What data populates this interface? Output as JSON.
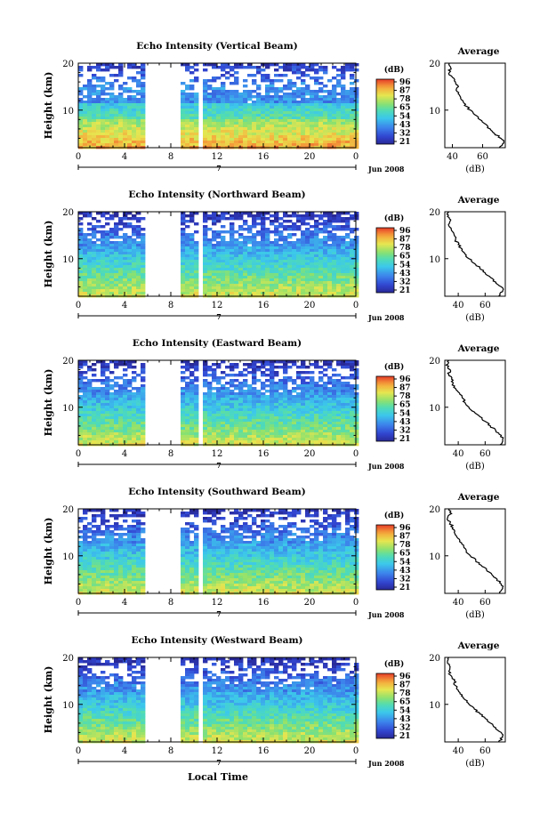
{
  "page": {
    "date_label": "Jun 2008",
    "xlabel": "Local Time",
    "day_label": "7"
  },
  "colorbar": {
    "title": "(dB)",
    "ticks": [
      "96",
      "87",
      "78",
      "65",
      "54",
      "43",
      "32",
      "21"
    ]
  },
  "profile": {
    "title": "Average",
    "xlabel": "(dB)"
  },
  "chart_data": [
    {
      "type": "heatmap",
      "title": "Echo Intensity (Vertical Beam)",
      "ylabel": "Height (km)",
      "xlim": [
        0,
        24
      ],
      "ylim": [
        2,
        20
      ],
      "xticks": [
        "0",
        "4",
        "8",
        "12",
        "16",
        "20",
        "0"
      ],
      "yticks": [
        "20",
        "10"
      ],
      "data_gaps_hours": [
        [
          5.8,
          9.0
        ],
        [
          10.5,
          10.7
        ]
      ],
      "colorscale_db": [
        21,
        96
      ],
      "profile": {
        "xticks": [
          "40",
          "60"
        ],
        "xlim": [
          35,
          75
        ],
        "points": [
          [
            38,
            20
          ],
          [
            39,
            19
          ],
          [
            38,
            18
          ],
          [
            40,
            17
          ],
          [
            42,
            16
          ],
          [
            44,
            15
          ],
          [
            43,
            14
          ],
          [
            45,
            13
          ],
          [
            47,
            12
          ],
          [
            48,
            11
          ],
          [
            52,
            10
          ],
          [
            55,
            9
          ],
          [
            58,
            8
          ],
          [
            62,
            7
          ],
          [
            65,
            6
          ],
          [
            68,
            5
          ],
          [
            72,
            4
          ],
          [
            74,
            3
          ],
          [
            71,
            2
          ]
        ]
      }
    },
    {
      "type": "heatmap",
      "title": "Echo Intensity (Northward Beam)",
      "ylabel": "Height (km)",
      "xlim": [
        0,
        24
      ],
      "ylim": [
        2,
        20
      ],
      "xticks": [
        "0",
        "4",
        "8",
        "12",
        "16",
        "20",
        "0"
      ],
      "yticks": [
        "20",
        "10"
      ],
      "data_gaps_hours": [
        [
          5.8,
          9.0
        ],
        [
          10.5,
          10.7
        ]
      ],
      "colorscale_db": [
        21,
        96
      ],
      "profile": {
        "xticks": [
          "40",
          "60"
        ],
        "xlim": [
          30,
          75
        ],
        "points": [
          [
            33,
            20
          ],
          [
            32,
            19
          ],
          [
            34,
            18
          ],
          [
            33,
            17
          ],
          [
            35,
            16
          ],
          [
            37,
            15
          ],
          [
            38,
            14
          ],
          [
            40,
            13
          ],
          [
            43,
            12
          ],
          [
            45,
            11
          ],
          [
            48,
            10
          ],
          [
            52,
            9
          ],
          [
            56,
            8
          ],
          [
            60,
            7
          ],
          [
            64,
            6
          ],
          [
            68,
            5
          ],
          [
            72,
            4
          ],
          [
            73,
            3
          ],
          [
            70,
            2
          ]
        ]
      }
    },
    {
      "type": "heatmap",
      "title": "Echo Intensity (Eastward Beam)",
      "ylabel": "Height (km)",
      "xlim": [
        0,
        24
      ],
      "ylim": [
        2,
        20
      ],
      "xticks": [
        "0",
        "4",
        "8",
        "12",
        "16",
        "20",
        "0"
      ],
      "yticks": [
        "20",
        "10"
      ],
      "data_gaps_hours": [
        [
          5.8,
          9.0
        ],
        [
          10.5,
          10.7
        ]
      ],
      "colorscale_db": [
        21,
        96
      ],
      "profile": {
        "xticks": [
          "40",
          "60"
        ],
        "xlim": [
          30,
          75
        ],
        "points": [
          [
            33,
            20
          ],
          [
            31,
            19
          ],
          [
            34,
            18
          ],
          [
            33,
            17
          ],
          [
            35,
            16
          ],
          [
            36,
            15
          ],
          [
            38,
            14
          ],
          [
            41,
            13
          ],
          [
            43,
            12
          ],
          [
            45,
            11
          ],
          [
            48,
            10
          ],
          [
            52,
            9
          ],
          [
            56,
            8
          ],
          [
            60,
            7
          ],
          [
            64,
            6
          ],
          [
            68,
            5
          ],
          [
            72,
            4
          ],
          [
            73,
            3
          ],
          [
            71,
            2
          ]
        ]
      }
    },
    {
      "type": "heatmap",
      "title": "Echo Intensity (Southward Beam)",
      "ylabel": "Height (km)",
      "xlim": [
        0,
        24
      ],
      "ylim": [
        2,
        20
      ],
      "xticks": [
        "0",
        "4",
        "8",
        "12",
        "16",
        "20",
        "0"
      ],
      "yticks": [
        "20",
        "10"
      ],
      "data_gaps_hours": [
        [
          5.8,
          9.0
        ],
        [
          10.5,
          10.7
        ]
      ],
      "colorscale_db": [
        21,
        96
      ],
      "profile": {
        "xticks": [
          "40",
          "60"
        ],
        "xlim": [
          30,
          75
        ],
        "points": [
          [
            33,
            20
          ],
          [
            35,
            19
          ],
          [
            32,
            18
          ],
          [
            34,
            17
          ],
          [
            36,
            16
          ],
          [
            37,
            15
          ],
          [
            39,
            14
          ],
          [
            41,
            13
          ],
          [
            44,
            12
          ],
          [
            46,
            11
          ],
          [
            49,
            10
          ],
          [
            53,
            9
          ],
          [
            57,
            8
          ],
          [
            61,
            7
          ],
          [
            65,
            6
          ],
          [
            69,
            5
          ],
          [
            72,
            4
          ],
          [
            73,
            3
          ],
          [
            71,
            2
          ]
        ]
      }
    },
    {
      "type": "heatmap",
      "title": "Echo Intensity (Westward Beam)",
      "ylabel": "Height (km)",
      "xlim": [
        0,
        24
      ],
      "ylim": [
        2,
        20
      ],
      "xticks": [
        "0",
        "4",
        "8",
        "12",
        "16",
        "20",
        "0"
      ],
      "yticks": [
        "20",
        "10"
      ],
      "data_gaps_hours": [
        [
          5.8,
          9.0
        ],
        [
          10.5,
          10.7
        ]
      ],
      "colorscale_db": [
        21,
        96
      ],
      "profile": {
        "xticks": [
          "40",
          "60"
        ],
        "xlim": [
          30,
          75
        ],
        "points": [
          [
            33,
            20
          ],
          [
            32,
            19
          ],
          [
            34,
            18
          ],
          [
            33,
            17
          ],
          [
            35,
            16
          ],
          [
            37,
            15
          ],
          [
            38,
            14
          ],
          [
            40,
            13
          ],
          [
            43,
            12
          ],
          [
            45,
            11
          ],
          [
            48,
            10
          ],
          [
            52,
            9
          ],
          [
            56,
            8
          ],
          [
            60,
            7
          ],
          [
            64,
            6
          ],
          [
            68,
            5
          ],
          [
            72,
            4
          ],
          [
            73,
            3
          ],
          [
            70,
            2
          ]
        ]
      }
    }
  ]
}
